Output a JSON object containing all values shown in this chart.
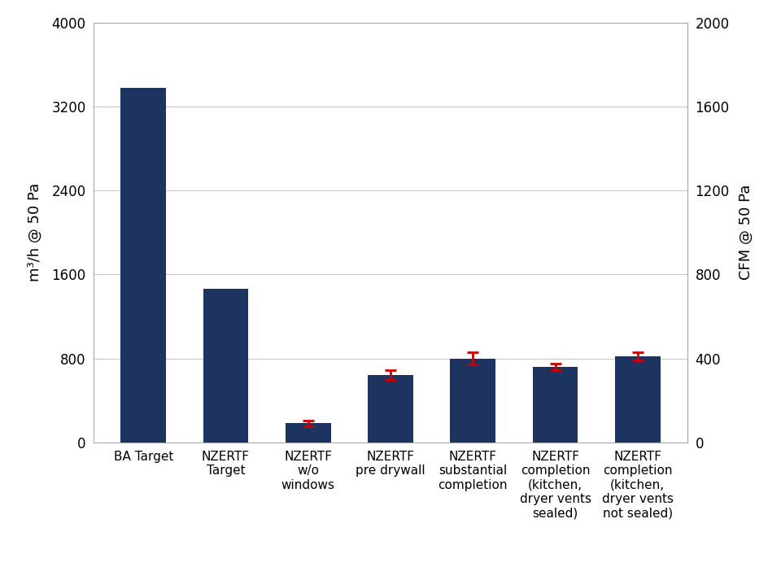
{
  "categories": [
    "BA Target",
    "NZERTF\nTarget",
    "NZERTF\nw/o\nwindows",
    "NZERTF\npre drywall",
    "NZERTF\nsubstantial\ncompletion",
    "NZERTF\ncompletion\n(kitchen,\ndryer vents\nsealed)",
    "NZERTF\ncompletion\n(kitchen,\ndryer vents\nnot sealed)"
  ],
  "values": [
    3380,
    1460,
    180,
    640,
    800,
    720,
    820
  ],
  "error_bars": [
    null,
    null,
    25,
    45,
    55,
    30,
    42
  ],
  "bar_color": "#1d3461",
  "error_color": "#cc0000",
  "ylabel_left": "m³/h @ 50 Pa",
  "ylabel_right": "CFM @ 50 Pa",
  "ylim_left": [
    0,
    4000
  ],
  "ylim_right": [
    0,
    2000
  ],
  "yticks_left": [
    0,
    800,
    1600,
    2400,
    3200,
    4000
  ],
  "yticks_right": [
    0,
    400,
    800,
    1200,
    1600,
    2000
  ],
  "background_color": "#ffffff",
  "grid_color": "#c8c8c8",
  "label_fontsize": 13,
  "tick_fontsize": 12,
  "xtick_fontsize": 11
}
